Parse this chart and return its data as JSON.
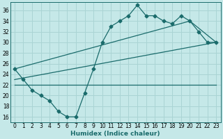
{
  "xlabel": "Humidex (Indice chaleur)",
  "background_color": "#c5e8e8",
  "grid_color": "#aad4d4",
  "line_color": "#1a6b6b",
  "xlim": [
    -0.5,
    23.5
  ],
  "ylim": [
    15,
    37.5
  ],
  "xticks": [
    0,
    1,
    2,
    3,
    4,
    5,
    6,
    7,
    8,
    9,
    10,
    11,
    12,
    13,
    14,
    15,
    16,
    17,
    18,
    19,
    20,
    21,
    22,
    23
  ],
  "yticks": [
    16,
    18,
    20,
    22,
    24,
    26,
    28,
    30,
    32,
    34,
    36
  ],
  "line1_x": [
    0,
    1,
    2,
    3,
    4,
    5,
    6,
    7,
    8,
    9,
    10,
    11,
    12,
    13,
    14,
    15,
    16,
    17,
    18,
    19,
    20,
    21,
    22,
    23
  ],
  "line1_y": [
    25,
    23,
    21,
    20,
    19,
    17,
    16,
    16,
    20.5,
    25,
    30,
    33,
    34,
    35,
    37,
    35,
    35,
    34,
    33.5,
    35,
    34,
    32,
    30,
    30
  ],
  "line2_x": [
    0,
    20,
    23
  ],
  "line2_y": [
    25,
    34,
    30
  ],
  "line3_x": [
    0,
    23
  ],
  "line3_y": [
    23,
    30
  ],
  "line4_x": [
    0,
    23
  ],
  "line4_y": [
    22,
    22
  ],
  "marker": "D",
  "markersize": 2.5,
  "linewidth": 0.9,
  "tick_fontsize": 5.5,
  "xlabel_fontsize": 6.5
}
